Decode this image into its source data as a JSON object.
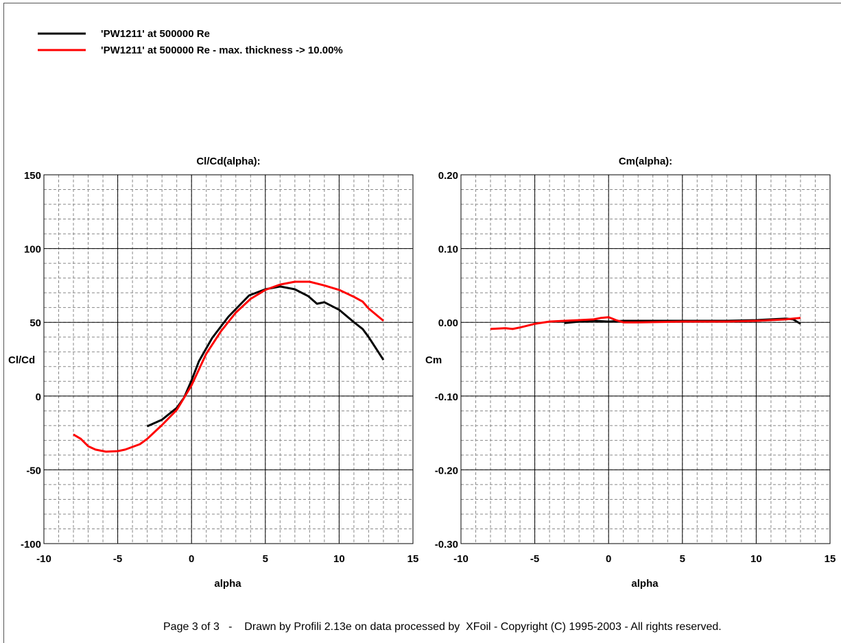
{
  "legend": [
    {
      "label": "'PW1211' at 500000 Re",
      "color": "#000000"
    },
    {
      "label": "'PW1211' at 500000 Re - max. thickness -> 10.00%",
      "color": "#ff0000"
    }
  ],
  "footer": "Page 3 of 3   -    Drawn by Profili 2.13e on data processed by  XFoil - Copyright (C) 1995-2003 - All rights reserved.",
  "chart_data": [
    {
      "type": "line",
      "title": "Cl/Cd(alpha):",
      "xlabel": "alpha",
      "ylabel": "Cl/Cd",
      "xlim": [
        -10,
        15
      ],
      "ylim": [
        -100,
        150
      ],
      "xticks": [
        -10,
        -5,
        0,
        5,
        10,
        15
      ],
      "yticks": [
        -100,
        -50,
        0,
        50,
        100,
        150
      ],
      "ytick_labels": [
        "-100",
        "-50",
        "0",
        "50",
        "100",
        "150"
      ],
      "x_minor": 1,
      "y_minor": 10,
      "grid": true,
      "series": [
        {
          "name": "'PW1211' at 500000 Re",
          "color": "#000000",
          "x": [
            -3,
            -2,
            -1,
            -0.5,
            0,
            0.5,
            1.4,
            2.5,
            3.9,
            5,
            6,
            7,
            7.9,
            8.5,
            9,
            10,
            11,
            11.6,
            12,
            13
          ],
          "y": [
            -20.5,
            -16,
            -8,
            -1,
            10.6,
            23.6,
            39.4,
            53.8,
            68.2,
            72.4,
            74.3,
            72.4,
            67.8,
            62.6,
            63.6,
            58.5,
            50.1,
            45.4,
            40,
            24.5
          ]
        },
        {
          "name": "'PW1211' at 500000 Re - max. thickness -> 10.00%",
          "color": "#ff0000",
          "x": [
            -8,
            -7.5,
            -7,
            -6.5,
            -5.8,
            -5,
            -4.5,
            -3.5,
            -3,
            -2,
            -1,
            0,
            1,
            2,
            3,
            4,
            5,
            6,
            7,
            8,
            9,
            10,
            11,
            11.6,
            12,
            13
          ],
          "y": [
            -26,
            -29,
            -34,
            -36.3,
            -37.7,
            -37.3,
            -36.3,
            -32.6,
            -29,
            -19.6,
            -9.4,
            7.3,
            28.7,
            44,
            56.6,
            65.9,
            72,
            75.6,
            77.5,
            77.5,
            75,
            72,
            67.3,
            64,
            59.4,
            51
          ]
        }
      ]
    },
    {
      "type": "line",
      "title": "Cm(alpha):",
      "xlabel": "alpha",
      "ylabel": "Cm",
      "xlim": [
        -10,
        15
      ],
      "ylim": [
        -0.3,
        0.2
      ],
      "xticks": [
        -10,
        -5,
        0,
        5,
        10,
        15
      ],
      "yticks": [
        -0.3,
        -0.2,
        -0.1,
        0,
        0.1,
        0.2
      ],
      "ytick_labels": [
        "-0.30",
        "-0.20",
        "-0.10",
        "0.00",
        "0.10",
        "0.20"
      ],
      "x_minor": 1,
      "y_minor": 0.02,
      "grid": true,
      "series": [
        {
          "name": "'PW1211' at 500000 Re",
          "color": "#000000",
          "x": [
            -3,
            -2,
            -1,
            0,
            1,
            2,
            5,
            8,
            10,
            11,
            12,
            12.5,
            13
          ],
          "y": [
            -0.001,
            0.001,
            0.002,
            0.001,
            0.002,
            0.002,
            0.002,
            0.002,
            0.003,
            0.004,
            0.005,
            0.004,
            -0.002
          ]
        },
        {
          "name": "'PW1211' at 500000 Re - max. thickness -> 10.00%",
          "color": "#ff0000",
          "x": [
            -8,
            -7,
            -6.5,
            -6,
            -5,
            -4,
            -3,
            -2,
            -1,
            -0.5,
            0,
            0.5,
            1,
            2,
            5,
            8,
            10,
            11,
            12,
            13
          ],
          "y": [
            -0.009,
            -0.008,
            -0.009,
            -0.007,
            -0.002,
            0.001,
            0.002,
            0.003,
            0.004,
            0.006,
            0.007,
            0.003,
            0.0,
            0.0,
            0.001,
            0.001,
            0.002,
            0.003,
            0.004,
            0.006
          ]
        }
      ]
    }
  ]
}
